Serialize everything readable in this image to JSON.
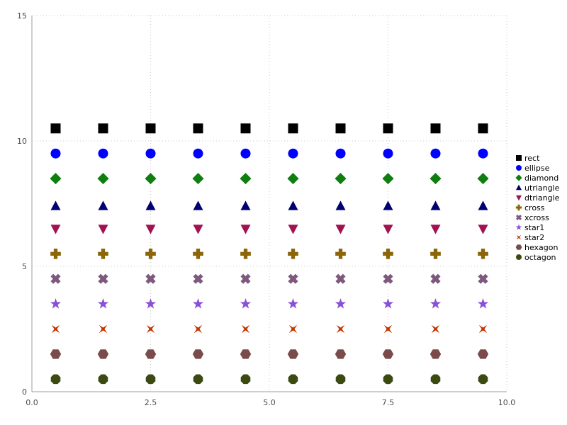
{
  "chart_data": {
    "type": "scatter",
    "title": "",
    "xlabel": "",
    "ylabel": "",
    "xlim": [
      0,
      10
    ],
    "ylim": [
      0,
      15
    ],
    "xticks": [
      0.0,
      2.5,
      5.0,
      7.5,
      10.0
    ],
    "xtick_labels": [
      "0.0",
      "2.5",
      "5.0",
      "7.5",
      "10.0"
    ],
    "yticks": [
      0,
      5,
      10,
      15
    ],
    "ytick_labels": [
      "0",
      "5",
      "10",
      "15"
    ],
    "grid": "dotted",
    "legend_position": "right",
    "x": [
      0.5,
      1.5,
      2.5,
      3.5,
      4.5,
      5.5,
      6.5,
      7.5,
      8.5,
      9.5
    ],
    "series": [
      {
        "name": "rect",
        "marker": "rect",
        "color": "#000000",
        "y": 10.5
      },
      {
        "name": "ellipse",
        "marker": "ellipse",
        "color": "#0000ff",
        "y": 9.5
      },
      {
        "name": "diamond",
        "marker": "diamond",
        "color": "#0e7e0e",
        "y": 8.5
      },
      {
        "name": "utriangle",
        "marker": "utriangle",
        "color": "#000070",
        "y": 7.4
      },
      {
        "name": "dtriangle",
        "marker": "dtriangle",
        "color": "#a01250",
        "y": 6.5
      },
      {
        "name": "cross",
        "marker": "cross",
        "color": "#8b6508",
        "y": 5.5
      },
      {
        "name": "xcross",
        "marker": "xcross",
        "color": "#7d597d",
        "y": 4.5
      },
      {
        "name": "star1",
        "marker": "star1",
        "color": "#8a4fd6",
        "y": 3.5
      },
      {
        "name": "star2",
        "marker": "star2",
        "color": "#c53400",
        "y": 2.5
      },
      {
        "name": "hexagon",
        "marker": "hexagon",
        "color": "#7b4b4b",
        "y": 1.5
      },
      {
        "name": "octagon",
        "marker": "octagon",
        "color": "#3c4a12",
        "y": 0.5
      }
    ],
    "colors": {
      "grid": "#c9c9c9",
      "axis": "#9e9e9e",
      "tick_text": "#4b4b4b",
      "legend_text": "#000000",
      "background": "#ffffff"
    }
  }
}
